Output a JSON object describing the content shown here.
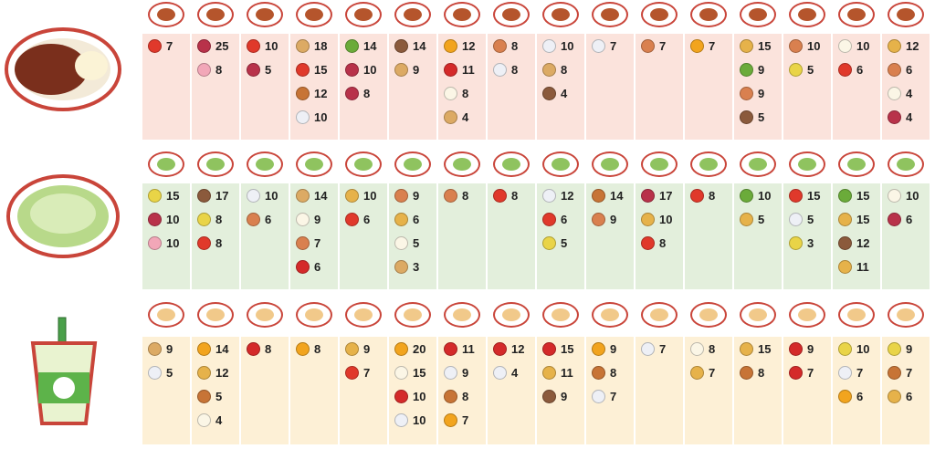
{
  "sections": [
    {
      "dishes": [
        {
          "ingredients": [
            {
              "color": "#e0392b",
              "count": 7
            }
          ]
        },
        {
          "ingredients": [
            {
              "color": "#b8324a",
              "count": 25
            },
            {
              "color": "#f2a7b8",
              "count": 8
            }
          ]
        },
        {
          "ingredients": [
            {
              "color": "#e0392b",
              "count": 10
            },
            {
              "color": "#b8324a",
              "count": 5
            }
          ]
        },
        {
          "ingredients": [
            {
              "color": "#dcaa64",
              "count": 18
            },
            {
              "color": "#e0392b",
              "count": 15
            },
            {
              "color": "#c77436",
              "count": 12
            },
            {
              "color": "#eef0f6",
              "count": 10
            }
          ]
        },
        {
          "ingredients": [
            {
              "color": "#6bab3a",
              "count": 14
            },
            {
              "color": "#b8324a",
              "count": 10
            },
            {
              "color": "#b8324a",
              "count": 8
            }
          ]
        },
        {
          "ingredients": [
            {
              "color": "#8b5a3c",
              "count": 14
            },
            {
              "color": "#dcaa64",
              "count": 9
            }
          ]
        },
        {
          "ingredients": [
            {
              "color": "#f2a41e",
              "count": 12
            },
            {
              "color": "#d42a2a",
              "count": 11
            },
            {
              "color": "#fbf6e6",
              "count": 8
            },
            {
              "color": "#dcaa64",
              "count": 4
            }
          ]
        },
        {
          "ingredients": [
            {
              "color": "#d9804f",
              "count": 8
            },
            {
              "color": "#eef0f6",
              "count": 8
            }
          ]
        },
        {
          "ingredients": [
            {
              "color": "#eef0f6",
              "count": 10
            },
            {
              "color": "#dcaa64",
              "count": 8
            },
            {
              "color": "#8b5a3c",
              "count": 4
            }
          ]
        },
        {
          "ingredients": [
            {
              "color": "#eef0f6",
              "count": 7
            }
          ]
        },
        {
          "ingredients": [
            {
              "color": "#d9804f",
              "count": 7
            }
          ]
        },
        {
          "ingredients": [
            {
              "color": "#f2a41e",
              "count": 7
            }
          ]
        },
        {
          "ingredients": [
            {
              "color": "#e6b24a",
              "count": 15
            },
            {
              "color": "#6bab3a",
              "count": 9
            },
            {
              "color": "#d9804f",
              "count": 9
            },
            {
              "color": "#8b5a3c",
              "count": 5
            }
          ]
        },
        {
          "ingredients": [
            {
              "color": "#d9804f",
              "count": 10
            },
            {
              "color": "#e9d447",
              "count": 5
            }
          ]
        },
        {
          "ingredients": [
            {
              "color": "#fbf6e6",
              "count": 10
            },
            {
              "color": "#e0392b",
              "count": 6
            }
          ]
        },
        {
          "ingredients": [
            {
              "color": "#e6b24a",
              "count": 12
            },
            {
              "color": "#d9804f",
              "count": 6
            },
            {
              "color": "#fbf6e6",
              "count": 4
            },
            {
              "color": "#b8324a",
              "count": 4
            }
          ]
        }
      ]
    },
    {
      "dishes": [
        {
          "ingredients": [
            {
              "color": "#e9d447",
              "count": 15
            },
            {
              "color": "#b8324a",
              "count": 10
            },
            {
              "color": "#f2a7b8",
              "count": 10
            }
          ]
        },
        {
          "ingredients": [
            {
              "color": "#8b5a3c",
              "count": 17
            },
            {
              "color": "#e9d447",
              "count": 8
            },
            {
              "color": "#e0392b",
              "count": 8
            }
          ]
        },
        {
          "ingredients": [
            {
              "color": "#eef0f6",
              "count": 10
            },
            {
              "color": "#d9804f",
              "count": 6
            }
          ]
        },
        {
          "ingredients": [
            {
              "color": "#dcaa64",
              "count": 14
            },
            {
              "color": "#fbf6e6",
              "count": 9
            },
            {
              "color": "#d9804f",
              "count": 7
            },
            {
              "color": "#d42a2a",
              "count": 6
            }
          ]
        },
        {
          "ingredients": [
            {
              "color": "#e6b24a",
              "count": 10
            },
            {
              "color": "#e0392b",
              "count": 6
            }
          ]
        },
        {
          "ingredients": [
            {
              "color": "#d9804f",
              "count": 9
            },
            {
              "color": "#e6b24a",
              "count": 6
            },
            {
              "color": "#fbf6e6",
              "count": 5
            },
            {
              "color": "#dcaa64",
              "count": 3
            }
          ]
        },
        {
          "ingredients": [
            {
              "color": "#d9804f",
              "count": 8
            }
          ]
        },
        {
          "ingredients": [
            {
              "color": "#e0392b",
              "count": 8
            }
          ]
        },
        {
          "ingredients": [
            {
              "color": "#eef0f6",
              "count": 12
            },
            {
              "color": "#e0392b",
              "count": 6
            },
            {
              "color": "#e9d447",
              "count": 5
            }
          ]
        },
        {
          "ingredients": [
            {
              "color": "#c77436",
              "count": 14
            },
            {
              "color": "#d9804f",
              "count": 9
            }
          ]
        },
        {
          "ingredients": [
            {
              "color": "#b8324a",
              "count": 17
            },
            {
              "color": "#e6b24a",
              "count": 10
            },
            {
              "color": "#e0392b",
              "count": 8
            }
          ]
        },
        {
          "ingredients": [
            {
              "color": "#e0392b",
              "count": 8
            }
          ]
        },
        {
          "ingredients": [
            {
              "color": "#6bab3a",
              "count": 10
            },
            {
              "color": "#e6b24a",
              "count": 5
            }
          ]
        },
        {
          "ingredients": [
            {
              "color": "#e0392b",
              "count": 15
            },
            {
              "color": "#eef0f6",
              "count": 5
            },
            {
              "color": "#e9d447",
              "count": 3
            }
          ]
        },
        {
          "ingredients": [
            {
              "color": "#6bab3a",
              "count": 15
            },
            {
              "color": "#e6b24a",
              "count": 15
            },
            {
              "color": "#8b5a3c",
              "count": 12
            },
            {
              "color": "#e6b24a",
              "count": 11
            }
          ]
        },
        {
          "ingredients": [
            {
              "color": "#fbf6e6",
              "count": 10
            },
            {
              "color": "#b8324a",
              "count": 6
            }
          ]
        }
      ]
    },
    {
      "dishes": [
        {
          "ingredients": [
            {
              "color": "#dcaa64",
              "count": 9
            },
            {
              "color": "#eef0f6",
              "count": 5
            }
          ]
        },
        {
          "ingredients": [
            {
              "color": "#f2a41e",
              "count": 14
            },
            {
              "color": "#e6b24a",
              "count": 12
            },
            {
              "color": "#c77436",
              "count": 5
            },
            {
              "color": "#fbf6e6",
              "count": 4
            }
          ]
        },
        {
          "ingredients": [
            {
              "color": "#d42a2a",
              "count": 8
            }
          ]
        },
        {
          "ingredients": [
            {
              "color": "#f2a41e",
              "count": 8
            }
          ]
        },
        {
          "ingredients": [
            {
              "color": "#e6b24a",
              "count": 9
            },
            {
              "color": "#e0392b",
              "count": 7
            }
          ]
        },
        {
          "ingredients": [
            {
              "color": "#f2a41e",
              "count": 20
            },
            {
              "color": "#fbf6e6",
              "count": 15
            },
            {
              "color": "#d42a2a",
              "count": 10
            },
            {
              "color": "#eef0f6",
              "count": 10
            }
          ]
        },
        {
          "ingredients": [
            {
              "color": "#d42a2a",
              "count": 11
            },
            {
              "color": "#eef0f6",
              "count": 9
            },
            {
              "color": "#c77436",
              "count": 8
            },
            {
              "color": "#f2a41e",
              "count": 7
            }
          ]
        },
        {
          "ingredients": [
            {
              "color": "#d42a2a",
              "count": 12
            },
            {
              "color": "#eef0f6",
              "count": 4
            }
          ]
        },
        {
          "ingredients": [
            {
              "color": "#d42a2a",
              "count": 15
            },
            {
              "color": "#e6b24a",
              "count": 11
            },
            {
              "color": "#8b5a3c",
              "count": 9
            }
          ]
        },
        {
          "ingredients": [
            {
              "color": "#f2a41e",
              "count": 9
            },
            {
              "color": "#c77436",
              "count": 8
            },
            {
              "color": "#eef0f6",
              "count": 7
            }
          ]
        },
        {
          "ingredients": [
            {
              "color": "#eef0f6",
              "count": 7
            }
          ]
        },
        {
          "ingredients": [
            {
              "color": "#fbf6e6",
              "count": 8
            },
            {
              "color": "#e6b24a",
              "count": 7
            }
          ]
        },
        {
          "ingredients": [
            {
              "color": "#e6b24a",
              "count": 15
            },
            {
              "color": "#c77436",
              "count": 8
            }
          ]
        },
        {
          "ingredients": [
            {
              "color": "#d42a2a",
              "count": 9
            },
            {
              "color": "#d42a2a",
              "count": 7
            }
          ]
        },
        {
          "ingredients": [
            {
              "color": "#e9d447",
              "count": 10
            },
            {
              "color": "#eef0f6",
              "count": 7
            },
            {
              "color": "#f2a41e",
              "count": 6
            }
          ]
        },
        {
          "ingredients": [
            {
              "color": "#e9d447",
              "count": 9
            },
            {
              "color": "#c77436",
              "count": 7
            },
            {
              "color": "#e6b24a",
              "count": 6
            }
          ]
        }
      ]
    }
  ]
}
